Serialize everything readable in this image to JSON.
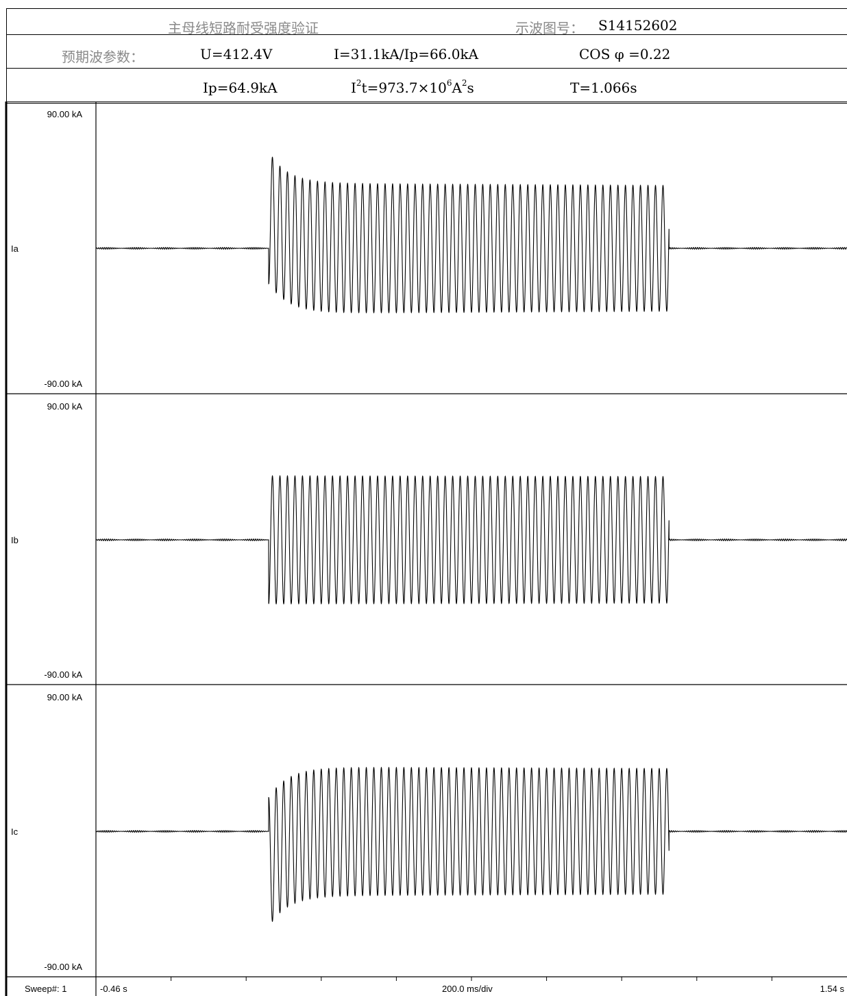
{
  "header": {
    "test_title": "主母线短路耐受强度验证",
    "oscillogram_label": "示波图号：",
    "oscillogram_no": "S14152602",
    "prospective_label": "预期波参数：",
    "voltage": "U=412.4V",
    "current": "I=31.1kA/Ip=66.0kA",
    "power_factor": "COS φ =0.22",
    "peak": "Ip=64.9kA",
    "i2t_prefix": "I",
    "i2t_sup1": "2",
    "i2t_mid": "t=973.7×10",
    "i2t_sup2": "6",
    "i2t_unit_a": "A",
    "i2t_sup3": "2",
    "i2t_unit_s": "s",
    "duration": "T=1.066s"
  },
  "footer": {
    "sweep": "Sweep#: 1",
    "t_start": "-0.46 s",
    "time_div": "200.0 ms/div",
    "t_end": "1.54 s"
  },
  "colors": {
    "trace": "#000000",
    "grid": "#000000"
  },
  "chart_data": [
    {
      "type": "line",
      "name": "Ia",
      "ylim": [
        -90,
        90
      ],
      "y_top_label": "90.00 kA",
      "y_bottom_label": "-90.00 kA",
      "xlim": [
        -0.46,
        1.54
      ],
      "fault_start": 0.0,
      "fault_end": 1.066,
      "frequency_hz": 50,
      "first_peak": -66.0,
      "dc_offset": 21.0,
      "steady_amplitude": 44.0,
      "tau": 0.05,
      "end_amplitude": 42.5
    },
    {
      "type": "line",
      "name": "Ib",
      "ylim": [
        -90,
        90
      ],
      "y_top_label": "90.00 kA",
      "y_bottom_label": "-90.00 kA",
      "xlim": [
        -0.46,
        1.54
      ],
      "fault_start": 0.0,
      "fault_end": 1.066,
      "frequency_hz": 50,
      "first_peak": -43.0,
      "dc_offset": 0.0,
      "steady_amplitude": 43.5,
      "tau": 0.05,
      "end_amplitude": 43.0
    },
    {
      "type": "line",
      "name": "Ic",
      "ylim": [
        -90,
        90
      ],
      "y_top_label": "90.00 kA",
      "y_bottom_label": "-90.00 kA",
      "xlim": [
        -0.46,
        1.54
      ],
      "fault_start": 0.0,
      "fault_end": 1.066,
      "frequency_hz": 50,
      "first_peak": 64.9,
      "dc_offset": -21.0,
      "steady_amplitude": 43.5,
      "tau": 0.05,
      "end_amplitude": 42.5
    }
  ]
}
